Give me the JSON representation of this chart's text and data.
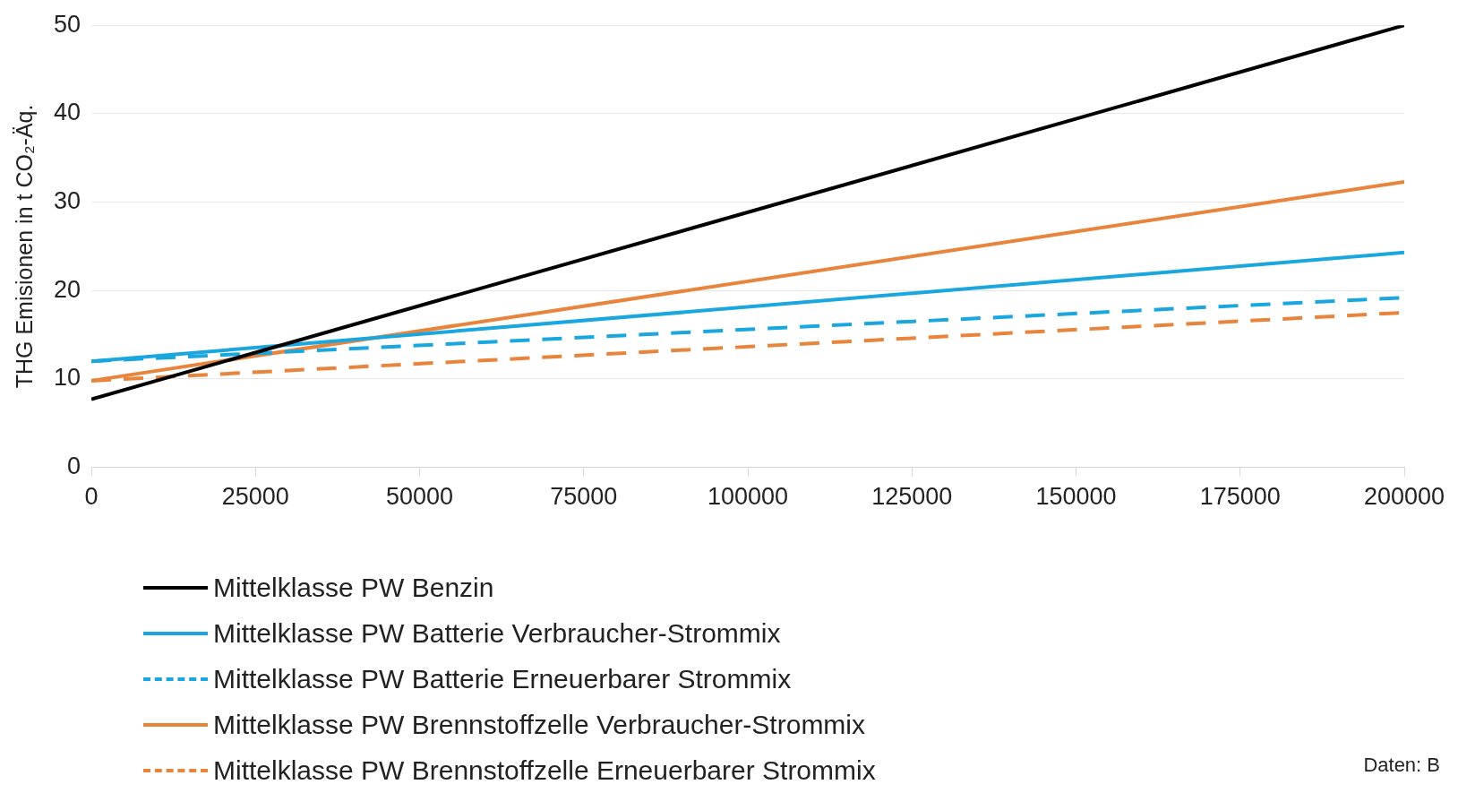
{
  "chart_data": {
    "type": "line",
    "ylabel": "THG Emisionen in t CO₂-Äq.",
    "x": [
      0,
      200000
    ],
    "xlim": [
      0,
      200000
    ],
    "xticks": [
      0,
      25000,
      50000,
      75000,
      100000,
      125000,
      150000,
      175000,
      200000
    ],
    "ylim": [
      0,
      50
    ],
    "yticks": [
      0,
      10,
      20,
      30,
      40,
      50
    ],
    "grid": "y",
    "legend": "bottom left",
    "marker": "none",
    "series": [
      {
        "name": "Mittelklasse PW Benzin",
        "color": "#000000",
        "values": [
          7.7,
          50
        ]
      },
      {
        "name": "Mittelklasse PW Batterie Verbraucher-Strommix",
        "color": "#1aa7e0",
        "values": [
          12,
          24.3
        ]
      },
      {
        "name": "Mittelklasse PW Batterie Erneuerbarer Strommix",
        "color": "#1aa7e0",
        "values": [
          12,
          19.2
        ],
        "line_style": "dashed"
      },
      {
        "name": "Mittelklasse PW Brennstoffzelle Verbraucher-Strommix",
        "color": "#e8843c",
        "values": [
          9.8,
          32.3
        ]
      },
      {
        "name": "Mittelklasse PW Brennstoffzelle Erneuerbarer Strommix",
        "color": "#e8843c",
        "values": [
          9.8,
          17.5
        ],
        "line_style": "dashed"
      }
    ],
    "annotations": [
      "Daten: B"
    ]
  }
}
